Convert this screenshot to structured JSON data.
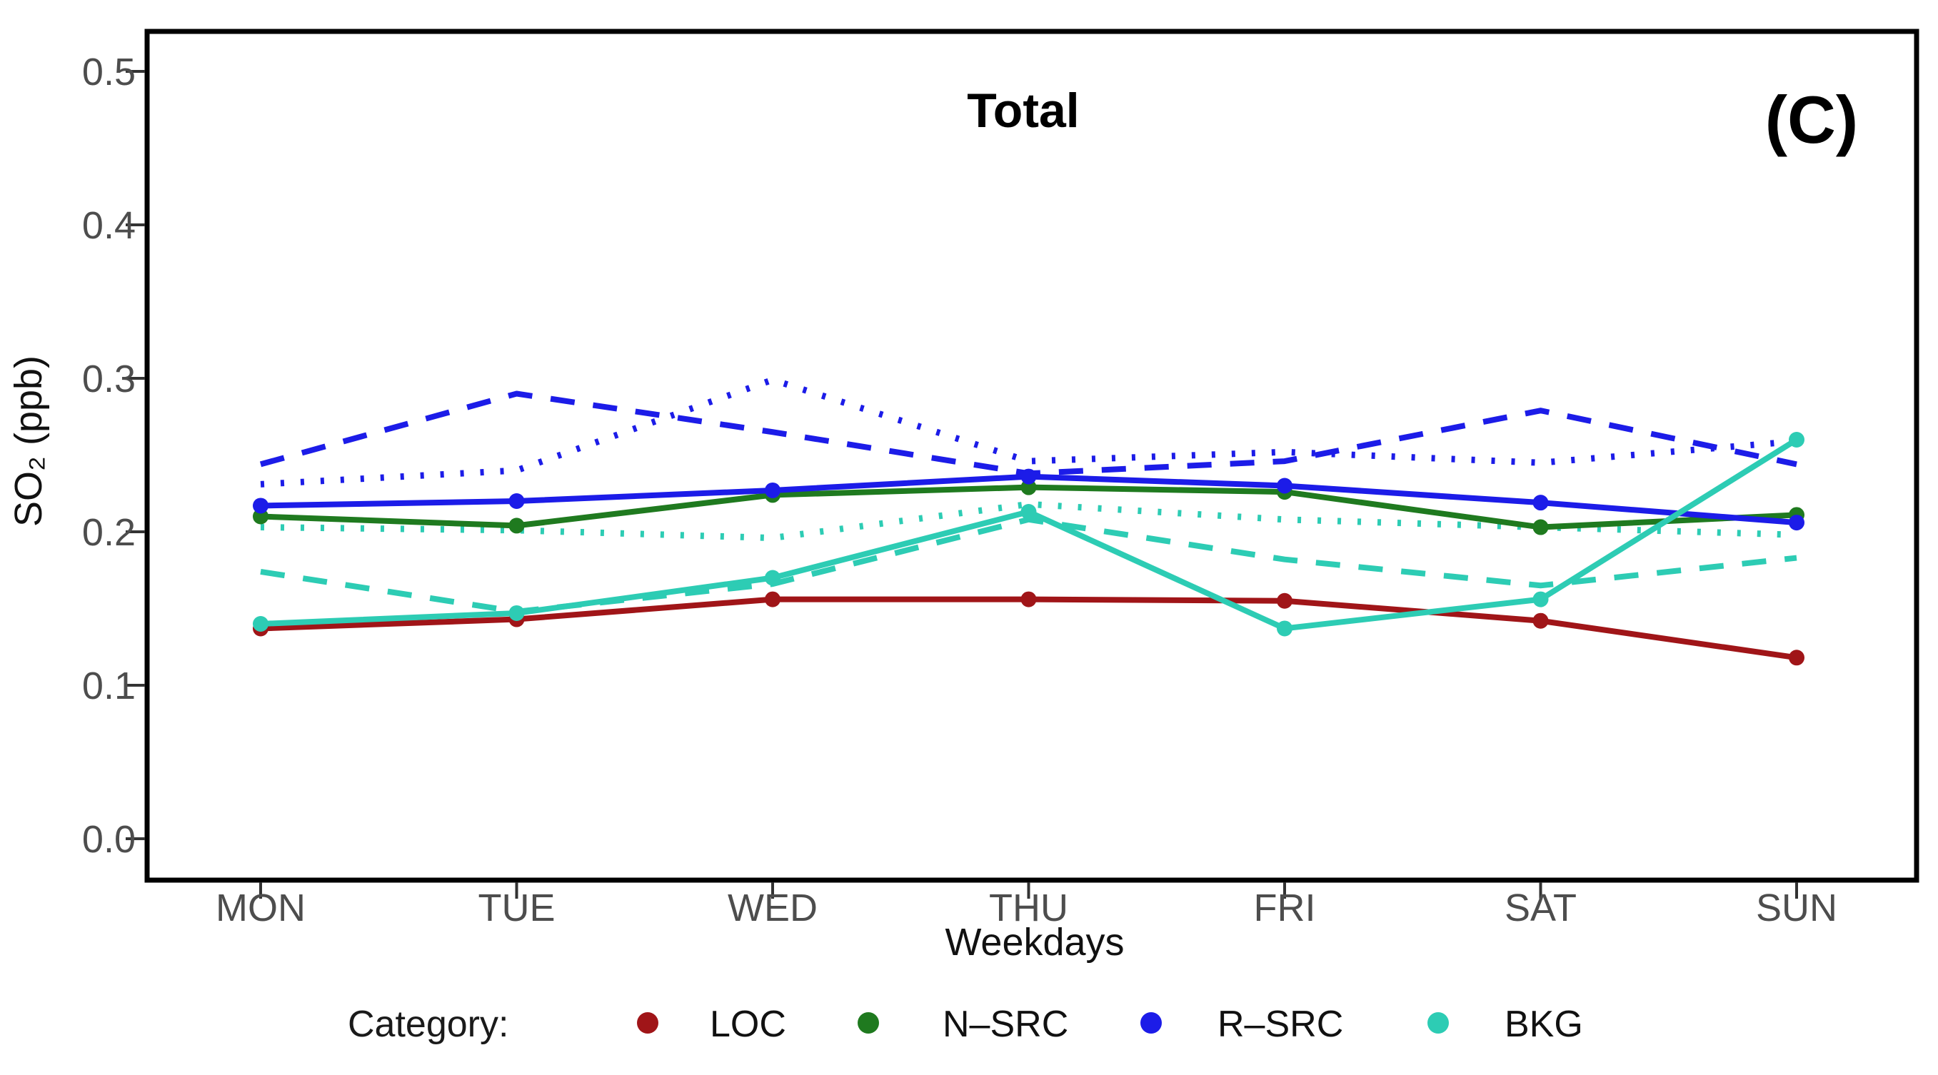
{
  "title": "Total",
  "panel_label": "(C)",
  "axes": {
    "y_label": "SO₂ (ppb)",
    "x_label": "Weekdays",
    "y_tick_labels": [
      "0.0",
      "0.1",
      "0.2",
      "0.3",
      "0.4",
      "0.5"
    ],
    "x_tick_labels": [
      "MON",
      "TUE",
      "WED",
      "THU",
      "FRI",
      "SAT",
      "SUN"
    ]
  },
  "legend": {
    "title": "Category:",
    "items": [
      {
        "label": "LOC",
        "color": "#A01518"
      },
      {
        "label": "N–SRC",
        "color": "#1F7A1F"
      },
      {
        "label": "R–SRC",
        "color": "#1C1CE8"
      },
      {
        "label": "BKG",
        "color": "#2DCCB4"
      }
    ]
  },
  "chart_data": {
    "type": "line",
    "title": "Total",
    "xlabel": "Weekdays",
    "ylabel": "SO₂ (ppb)",
    "categories": [
      "MON",
      "TUE",
      "WED",
      "THU",
      "FRI",
      "SAT",
      "SUN"
    ],
    "ylim": [
      0.0,
      0.5
    ],
    "y_ticks": [
      0.0,
      0.1,
      0.2,
      0.3,
      0.4,
      0.5
    ],
    "grid": false,
    "legend_position": "bottom",
    "series": [
      {
        "id": "rsrc-dashed",
        "name": "R–SRC (dashed)",
        "linestyle": "dashed",
        "markers": false,
        "color": "#1C1CE8",
        "values": [
          0.244,
          0.29,
          0.265,
          0.238,
          0.246,
          0.279,
          0.244
        ]
      },
      {
        "id": "rsrc-dotted",
        "name": "R–SRC (dotted)",
        "linestyle": "dotted",
        "markers": false,
        "color": "#1C1CE8",
        "values": [
          0.231,
          0.24,
          0.299,
          0.246,
          0.252,
          0.245,
          0.259
        ]
      },
      {
        "id": "bkg-dashed",
        "name": "BKG (dashed)",
        "linestyle": "dashed",
        "markers": false,
        "color": "#2DCCB4",
        "values": [
          0.174,
          0.148,
          0.166,
          0.208,
          0.182,
          0.165,
          0.183
        ]
      },
      {
        "id": "bkg-dotted",
        "name": "BKG (dotted)",
        "linestyle": "dotted",
        "markers": false,
        "color": "#2DCCB4",
        "values": [
          0.203,
          0.201,
          0.196,
          0.218,
          0.208,
          0.203,
          0.198
        ]
      },
      {
        "id": "nsrc",
        "name": "N–SRC",
        "linestyle": "solid",
        "markers": true,
        "color": "#1F7A1F",
        "values": [
          0.21,
          0.204,
          0.224,
          0.229,
          0.226,
          0.203,
          0.211
        ]
      },
      {
        "id": "rsrc",
        "name": "R–SRC",
        "linestyle": "solid",
        "markers": true,
        "color": "#1C1CE8",
        "values": [
          0.217,
          0.22,
          0.227,
          0.236,
          0.23,
          0.219,
          0.206
        ]
      },
      {
        "id": "loc",
        "name": "LOC",
        "linestyle": "solid",
        "markers": true,
        "color": "#A01518",
        "values": [
          0.137,
          0.143,
          0.156,
          0.156,
          0.155,
          0.142,
          0.118
        ]
      },
      {
        "id": "bkg",
        "name": "BKG",
        "linestyle": "solid",
        "markers": true,
        "color": "#2DCCB4",
        "values": [
          0.14,
          0.147,
          0.17,
          0.213,
          0.137,
          0.156,
          0.26
        ]
      }
    ]
  }
}
